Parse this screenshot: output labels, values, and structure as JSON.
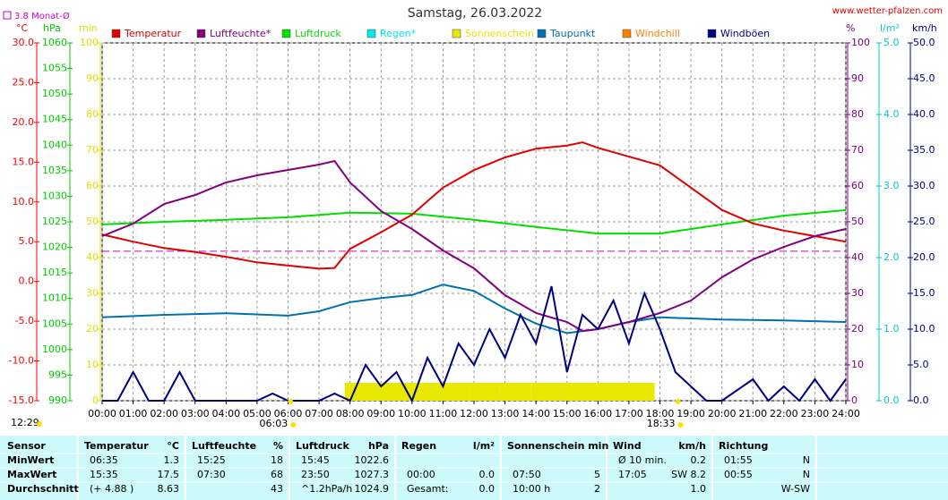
{
  "chart_data": {
    "type": "line",
    "title": "Samstag, 26.03.2022",
    "source": "www.wetter-pfalzen.com",
    "xlim": [
      0,
      24
    ],
    "xticks": [
      {
        "value": 0,
        "label": "00:00"
      },
      {
        "value": 1,
        "label": "01:00"
      },
      {
        "value": 2,
        "label": "02:00"
      },
      {
        "value": 3,
        "label": "03:00"
      },
      {
        "value": 4,
        "label": "04:00"
      },
      {
        "value": 5,
        "label": "05:00"
      },
      {
        "value": 6,
        "label": "06:00"
      },
      {
        "value": 7,
        "label": "07:00"
      },
      {
        "value": 8,
        "label": "08:00"
      },
      {
        "value": 9,
        "label": "09:00"
      },
      {
        "value": 10,
        "label": "10:00"
      },
      {
        "value": 11,
        "label": "11:00"
      },
      {
        "value": 12,
        "label": "12:00"
      },
      {
        "value": 13,
        "label": "13:00"
      },
      {
        "value": 14,
        "label": "14:00"
      },
      {
        "value": 15,
        "label": "15:00"
      },
      {
        "value": 16,
        "label": "16:00"
      },
      {
        "value": 17,
        "label": "17:00"
      },
      {
        "value": 18,
        "label": "18:00"
      },
      {
        "value": 19,
        "label": "19:00"
      },
      {
        "value": 20,
        "label": "20:00"
      },
      {
        "value": 21,
        "label": "21:00"
      },
      {
        "value": 22,
        "label": "22:00"
      },
      {
        "value": 23,
        "label": "23:00"
      },
      {
        "value": 24,
        "label": "24:00"
      }
    ],
    "grid": true,
    "axes": {
      "temp": {
        "unit": "°C",
        "color": "#ff0000",
        "lim": [
          -15,
          30
        ],
        "ticks": [
          {
            "value": -15,
            "label": "-15.0"
          },
          {
            "value": -10,
            "label": "-10.0"
          },
          {
            "value": -5,
            "label": "-5.0"
          },
          {
            "value": 0,
            "label": "0.0"
          },
          {
            "value": 5,
            "label": "5.0"
          },
          {
            "value": 10,
            "label": "10.0"
          },
          {
            "value": 15,
            "label": "15.0"
          },
          {
            "value": 20,
            "label": "20.0"
          },
          {
            "value": 25,
            "label": "25.0"
          },
          {
            "value": 30,
            "label": "30.0"
          }
        ]
      },
      "hpa": {
        "unit": "hPa",
        "color": "#00cc00",
        "lim": [
          990,
          1060
        ],
        "ticks": [
          990,
          995,
          1000,
          1005,
          1010,
          1015,
          1020,
          1025,
          1030,
          1035,
          1040,
          1045,
          1050,
          1055,
          1060
        ]
      },
      "min": {
        "unit": "min",
        "color": "#e0e000",
        "lim": [
          0,
          100
        ],
        "ticks": [
          0,
          10,
          20,
          30,
          40,
          50,
          60,
          70,
          80,
          90,
          100
        ]
      },
      "pct": {
        "unit": "%",
        "color": "#800080",
        "lim": [
          0,
          100
        ],
        "ticks": [
          0,
          10,
          20,
          30,
          40,
          50,
          60,
          70,
          80,
          90,
          100
        ]
      },
      "rain": {
        "unit": "l/m²",
        "color": "#00c8c8",
        "lim": [
          0,
          5
        ],
        "ticks": [
          {
            "value": 0,
            "label": "0.0"
          },
          {
            "value": 1,
            "label": "1.0"
          },
          {
            "value": 2,
            "label": "2.0"
          },
          {
            "value": 3,
            "label": "3.0"
          },
          {
            "value": 4,
            "label": "4.0"
          },
          {
            "value": 5,
            "label": "5.0"
          }
        ]
      },
      "wind": {
        "unit": "km/h",
        "color": "#000080",
        "lim": [
          0,
          50
        ],
        "ticks": [
          {
            "value": 0,
            "label": "0.0"
          },
          {
            "value": 5,
            "label": "5.0"
          },
          {
            "value": 10,
            "label": "10.0"
          },
          {
            "value": 15,
            "label": "15.0"
          },
          {
            "value": 20,
            "label": "20.0"
          },
          {
            "value": 25,
            "label": "25.0"
          },
          {
            "value": 30,
            "label": "30.0"
          },
          {
            "value": 35,
            "label": "35.0"
          },
          {
            "value": 40,
            "label": "40.0"
          },
          {
            "value": 45,
            "label": "45.0"
          },
          {
            "value": 50,
            "label": "50.0"
          }
        ]
      }
    },
    "reference": {
      "label": "3.8 Monat-Ø",
      "value": 3.8,
      "axis": "temp",
      "color": "#cc00cc"
    },
    "series": [
      {
        "name": "Temperatur",
        "color": "#e00000",
        "axis": "temp",
        "kind": "line",
        "x": [
          0,
          1,
          2,
          3,
          4,
          5,
          6,
          7,
          7.5,
          8,
          9,
          10,
          11,
          12,
          13,
          14,
          15,
          15.5,
          16,
          17,
          18,
          19,
          20,
          21,
          22,
          23,
          24
        ],
        "values": [
          5.9,
          5.0,
          4.2,
          3.7,
          3.1,
          2.4,
          2.0,
          1.6,
          1.7,
          4.1,
          6.2,
          8.4,
          11.8,
          14.0,
          15.6,
          16.7,
          17.1,
          17.5,
          16.8,
          15.7,
          14.6,
          11.8,
          9.0,
          7.3,
          6.4,
          5.7,
          5.0
        ]
      },
      {
        "name": "Luftfeuchte*",
        "color": "#800080",
        "axis": "pct",
        "kind": "line",
        "x": [
          0,
          1,
          2,
          3,
          4,
          5,
          6,
          7,
          7.5,
          8,
          9,
          10,
          11,
          12,
          13,
          14,
          15,
          15.5,
          16,
          17,
          18,
          19,
          20,
          21,
          22,
          23,
          24
        ],
        "values": [
          46,
          49.5,
          55,
          57.5,
          61,
          63,
          64.5,
          66,
          67,
          61,
          53,
          48,
          42,
          37,
          29.5,
          24.5,
          22,
          19.5,
          20,
          22,
          24.5,
          28,
          34.5,
          39.5,
          43,
          46,
          48
        ]
      },
      {
        "name": "Luftdruck",
        "color": "#00e000",
        "axis": "hpa",
        "kind": "line",
        "x": [
          0,
          2,
          4,
          6,
          8,
          10,
          12,
          14,
          16,
          18,
          20,
          22,
          24
        ],
        "values": [
          1024.5,
          1025,
          1025.4,
          1025.9,
          1026.8,
          1026.6,
          1025.4,
          1024,
          1022.7,
          1022.7,
          1024.5,
          1026.2,
          1027.3
        ]
      },
      {
        "name": "Regen*",
        "color": "#00e8e8",
        "axis": "rain",
        "kind": "line",
        "x": [],
        "values": []
      },
      {
        "name": "Sonnenschein",
        "color": "#e8e800",
        "axis": "min",
        "kind": "bar",
        "x": [
          7.83,
          8.83,
          9.83,
          10.83,
          11.83,
          12.83,
          13.83,
          14.83,
          15.83,
          16.83
        ],
        "values": [
          5,
          5,
          5,
          5,
          5,
          5,
          5,
          5,
          5,
          5
        ]
      },
      {
        "name": "Taupunkt",
        "color": "#0070b0",
        "axis": "temp",
        "kind": "line",
        "x": [
          0,
          2,
          4,
          6,
          7,
          8,
          9,
          10,
          11,
          12,
          13,
          14,
          15,
          16,
          17,
          18,
          20,
          22,
          24
        ],
        "values": [
          -4.5,
          -4.2,
          -4.0,
          -4.3,
          -3.75,
          -2.6,
          -2.1,
          -1.7,
          -0.4,
          -1.2,
          -3.4,
          -5.3,
          -6.5,
          -6.0,
          -5.1,
          -4.5,
          -4.8,
          -4.9,
          -5.1
        ]
      },
      {
        "name": "Windchill",
        "color": "#ff8000",
        "axis": "temp",
        "kind": "line",
        "x": [],
        "values": []
      },
      {
        "name": "Windböen",
        "color": "#000080",
        "axis": "wind",
        "kind": "line",
        "x": [
          0,
          0.5,
          1,
          1.5,
          2,
          2.5,
          3,
          4,
          5,
          5.5,
          6,
          7,
          7.5,
          8,
          8.5,
          9,
          9.5,
          10,
          10.5,
          11,
          11.5,
          12,
          12.5,
          13,
          13.5,
          14,
          14.5,
          15,
          15.5,
          16,
          16.5,
          17,
          17.5,
          18,
          18.5,
          19,
          19.5,
          20,
          21,
          21.5,
          22,
          22.5,
          23,
          23.5,
          24
        ],
        "values": [
          0,
          0,
          4,
          0,
          0,
          4,
          0,
          0,
          0,
          1,
          0,
          0,
          1,
          0,
          5,
          2,
          4,
          0,
          6,
          2,
          8,
          5,
          10,
          6,
          12,
          8,
          16,
          4,
          12,
          10,
          14,
          8,
          15,
          10,
          4,
          2,
          0,
          0,
          3,
          0,
          2,
          0,
          3,
          0,
          3
        ]
      }
    ],
    "sunrise": "06:03",
    "sunset": "18:33",
    "daylength": "12:29",
    "table": {
      "header": [
        [
          "Sensor"
        ],
        [
          "Temperatur",
          "°C"
        ],
        [
          "Luftfeuchte",
          "%"
        ],
        [
          "Luftdruck",
          "hPa"
        ],
        [
          "Regen",
          "l/m²"
        ],
        [
          "Sonnenschein min"
        ],
        [
          "Wind",
          "km/h"
        ],
        [
          "Richtung"
        ]
      ],
      "rows": [
        {
          "label": "MinWert",
          "cells": [
            [
              "06:35",
              "1.3"
            ],
            [
              "15:25",
              "18"
            ],
            [
              "15:45",
              "1022.6"
            ],
            [
              null,
              null
            ],
            [
              null,
              null
            ],
            [
              "Ø 10 min.",
              "0.2"
            ],
            [
              "01:55",
              "N"
            ]
          ]
        },
        {
          "label": "MaxWert",
          "cells": [
            [
              "15:35",
              "17.5"
            ],
            [
              "07:30",
              "68"
            ],
            [
              "23:50",
              "1027.3"
            ],
            [
              "00:00",
              "0.0"
            ],
            [
              "07:50",
              "5"
            ],
            [
              "17:05",
              "SW 8.2"
            ],
            [
              "00:55",
              "N"
            ]
          ]
        },
        {
          "label": "Durchschnitt",
          "cells": [
            [
              "(+ 4.88 )",
              "8.63"
            ],
            [
              null,
              "43"
            ],
            [
              "^1.2hPa/h",
              "1024.9"
            ],
            [
              "Gesamt:",
              "0.0"
            ],
            [
              "10:00 h",
              "2"
            ],
            [
              null,
              "1.0"
            ],
            [
              null,
              "W-SW"
            ]
          ]
        }
      ]
    }
  }
}
